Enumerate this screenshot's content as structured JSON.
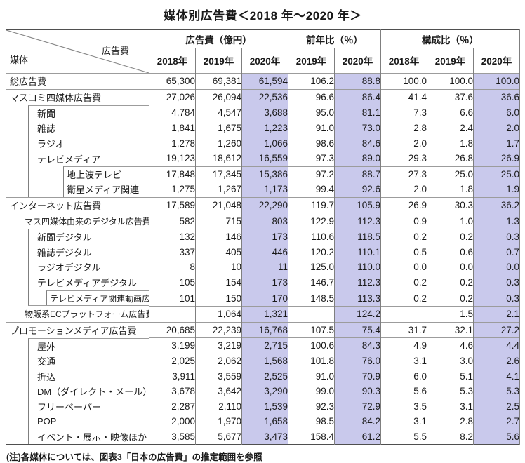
{
  "title": "媒体別広告費＜2018 年～2020 年＞",
  "note": "(注)各媒体については、図表3「日本の広告費」の推定範囲を参照",
  "corner": {
    "top_right_label": "広告費",
    "bottom_left_label": "媒体"
  },
  "colors": {
    "highlight_2020": "#c9c9ec",
    "grid_vertical": "#7f7f7f",
    "grid_horizontal": "#9c9c9c",
    "outer_border": "#4f4f4f"
  },
  "chart_data": {
    "type": "table",
    "title": "媒体別広告費＜2018 年～2020 年＞",
    "unit_note": "億円 / %",
    "column_groups": [
      {
        "label": "広告費（億円）",
        "columns": [
          "2018年",
          "2019年",
          "2020年"
        ]
      },
      {
        "label": "前年比（％）",
        "columns": [
          "2019年",
          "2020年"
        ]
      },
      {
        "label": "構成比（％）",
        "columns": [
          "2018年",
          "2019年",
          "2020年"
        ]
      }
    ],
    "highlighted_columns": [
      "2020年"
    ],
    "rows": [
      {
        "label": "総広告費",
        "style": "top",
        "rule": "none",
        "values": [
          "65,300",
          "69,381",
          "61,594",
          "106.2",
          "88.8",
          "100.0",
          "100.0",
          "100.0"
        ]
      },
      {
        "label": "マスコミ四媒体広告費",
        "style": "top",
        "rule": "full",
        "values": [
          "27,026",
          "26,094",
          "22,536",
          "96.6",
          "86.4",
          "41.4",
          "37.6",
          "36.6"
        ]
      },
      {
        "label": "新聞",
        "style": "boxTop",
        "rule": "num",
        "values": [
          "4,784",
          "4,547",
          "3,688",
          "95.0",
          "81.1",
          "7.3",
          "6.6",
          "6.0"
        ]
      },
      {
        "label": "雑誌",
        "style": "box",
        "rule": "none",
        "values": [
          "1,841",
          "1,675",
          "1,223",
          "91.0",
          "73.0",
          "2.8",
          "2.4",
          "2.0"
        ]
      },
      {
        "label": "ラジオ",
        "style": "box",
        "rule": "none",
        "values": [
          "1,278",
          "1,260",
          "1,066",
          "98.6",
          "84.6",
          "2.0",
          "1.8",
          "1.7"
        ]
      },
      {
        "label": "テレビメディア",
        "style": "box",
        "rule": "none",
        "values": [
          "19,123",
          "18,612",
          "16,559",
          "97.3",
          "89.0",
          "29.3",
          "26.8",
          "26.9"
        ]
      },
      {
        "label": "地上波テレビ",
        "style": "deepTop",
        "rule": "num",
        "values": [
          "17,848",
          "17,345",
          "15,386",
          "97.2",
          "88.7",
          "27.3",
          "25.0",
          "25.0"
        ]
      },
      {
        "label": "衛星メディア関連",
        "style": "deep",
        "rule": "none",
        "values": [
          "1,275",
          "1,267",
          "1,173",
          "99.4",
          "92.6",
          "2.0",
          "1.8",
          "1.9"
        ]
      },
      {
        "label": "インターネット広告費",
        "style": "top",
        "rule": "full",
        "values": [
          "17,589",
          "21,048",
          "22,290",
          "119.7",
          "105.9",
          "26.9",
          "30.3",
          "36.2"
        ]
      },
      {
        "label": "マス四媒体由来のデジタル広告費",
        "style": "sub",
        "rule": "full",
        "values": [
          "582",
          "715",
          "803",
          "122.9",
          "112.3",
          "0.9",
          "1.0",
          "1.3"
        ]
      },
      {
        "label": "新聞デジタル",
        "style": "boxTop",
        "rule": "num",
        "values": [
          "132",
          "146",
          "173",
          "110.6",
          "118.5",
          "0.2",
          "0.2",
          "0.3"
        ]
      },
      {
        "label": "雑誌デジタル",
        "style": "box",
        "rule": "none",
        "values": [
          "337",
          "405",
          "446",
          "120.2",
          "110.1",
          "0.5",
          "0.6",
          "0.7"
        ]
      },
      {
        "label": "ラジオデジタル",
        "style": "box",
        "rule": "none",
        "values": [
          "8",
          "10",
          "11",
          "125.0",
          "110.0",
          "0.0",
          "0.0",
          "0.0"
        ]
      },
      {
        "label": "テレビメディアデジタル",
        "style": "box",
        "rule": "none",
        "values": [
          "105",
          "154",
          "173",
          "146.7",
          "112.3",
          "0.2",
          "0.2",
          "0.3"
        ]
      },
      {
        "label": "テレビメディア関連動画広告",
        "style": "video",
        "rule": "num",
        "values": [
          "101",
          "150",
          "170",
          "148.5",
          "113.3",
          "0.2",
          "0.2",
          "0.3"
        ]
      },
      {
        "label": "物販系ECプラットフォーム広告費",
        "style": "sub",
        "rule": "num",
        "values": [
          "",
          "1,064",
          "1,321",
          "",
          "124.2",
          "",
          "1.5",
          "2.1"
        ]
      },
      {
        "label": "プロモーションメディア広告費",
        "style": "top",
        "rule": "full",
        "values": [
          "20,685",
          "22,239",
          "16,768",
          "107.5",
          "75.4",
          "31.7",
          "32.1",
          "27.2"
        ]
      },
      {
        "label": "屋外",
        "style": "boxTop",
        "rule": "num",
        "values": [
          "3,199",
          "3,219",
          "2,715",
          "100.6",
          "84.3",
          "4.9",
          "4.6",
          "4.4"
        ]
      },
      {
        "label": "交通",
        "style": "box",
        "rule": "none",
        "values": [
          "2,025",
          "2,062",
          "1,568",
          "101.8",
          "76.0",
          "3.1",
          "3.0",
          "2.6"
        ]
      },
      {
        "label": "折込",
        "style": "box",
        "rule": "none",
        "values": [
          "3,911",
          "3,559",
          "2,525",
          "91.0",
          "70.9",
          "6.0",
          "5.1",
          "4.1"
        ]
      },
      {
        "label": "DM（ダイレクト・メール）",
        "style": "box",
        "rule": "none",
        "values": [
          "3,678",
          "3,642",
          "3,290",
          "99.0",
          "90.3",
          "5.6",
          "5.3",
          "5.3"
        ]
      },
      {
        "label": "フリーペーパー",
        "style": "box",
        "rule": "none",
        "values": [
          "2,287",
          "2,110",
          "1,539",
          "92.3",
          "72.9",
          "3.5",
          "3.1",
          "2.5"
        ]
      },
      {
        "label": "POP",
        "style": "box",
        "rule": "none",
        "values": [
          "2,000",
          "1,970",
          "1,658",
          "98.5",
          "84.2",
          "3.1",
          "2.8",
          "2.7"
        ]
      },
      {
        "label": "イベント・展示・映像ほか",
        "style": "box",
        "rule": "none",
        "values": [
          "3,585",
          "5,677",
          "3,473",
          "158.4",
          "61.2",
          "5.5",
          "8.2",
          "5.6"
        ]
      }
    ]
  }
}
